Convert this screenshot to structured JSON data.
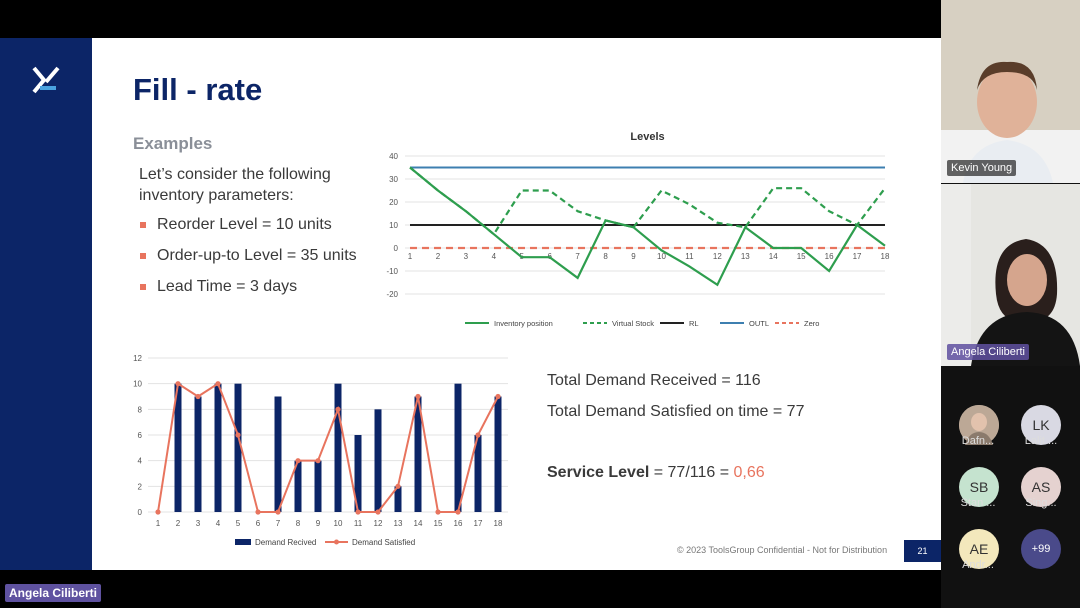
{
  "slide": {
    "title": "Fill - rate",
    "subtitle": "Examples",
    "intro": "Let’s consider the following inventory parameters:",
    "bullets": [
      "Reorder Level = 10 units",
      "Order-up-to Level = 35 units",
      "Lead Time = 3 days"
    ],
    "total_received": "Total Demand Received = 116",
    "total_satisfied": "Total Demand Satisfied on time = 77",
    "service_label": "Service Level",
    "service_formula": " = 77/116 = ",
    "service_value": "0,66",
    "footer": "© 2023 ToolsGroup Confidential - Not for Distribution",
    "page_number": "21",
    "colors": {
      "navy": "#0c2567",
      "accent": "#e8745e",
      "green": "#2e9e4e",
      "blue": "#3d7fb0"
    }
  },
  "chart_data": [
    {
      "type": "line",
      "title": "Levels",
      "x": [
        1,
        2,
        3,
        4,
        5,
        6,
        7,
        8,
        9,
        10,
        11,
        12,
        13,
        14,
        15,
        16,
        17,
        18
      ],
      "ylim": [
        -20,
        40
      ],
      "yticks": [
        -20,
        -10,
        0,
        10,
        20,
        30,
        40
      ],
      "series": [
        {
          "name": "Inventory position",
          "style": "solid",
          "color": "#2e9e4e",
          "values": [
            35,
            25,
            16,
            6,
            -4,
            -4,
            -13,
            12,
            9,
            -1,
            -8,
            -16,
            9,
            0,
            0,
            -10,
            10,
            1
          ]
        },
        {
          "name": "Virtual Stock",
          "style": "dashed",
          "color": "#2e9e4e",
          "values": [
            35,
            25,
            16,
            6,
            25,
            25,
            16,
            12,
            9,
            25,
            19,
            11,
            9,
            26,
            26,
            16,
            10,
            26
          ]
        },
        {
          "name": "RL",
          "style": "solid",
          "color": "#222222",
          "values": [
            10,
            10,
            10,
            10,
            10,
            10,
            10,
            10,
            10,
            10,
            10,
            10,
            10,
            10,
            10,
            10,
            10,
            10
          ]
        },
        {
          "name": "OUTL",
          "style": "solid",
          "color": "#3d7fb0",
          "values": [
            35,
            35,
            35,
            35,
            35,
            35,
            35,
            35,
            35,
            35,
            35,
            35,
            35,
            35,
            35,
            35,
            35,
            35
          ]
        },
        {
          "name": "Zero",
          "style": "dashed",
          "color": "#e8745e",
          "values": [
            0,
            0,
            0,
            0,
            0,
            0,
            0,
            0,
            0,
            0,
            0,
            0,
            0,
            0,
            0,
            0,
            0,
            0
          ]
        }
      ],
      "legend": "bottom"
    },
    {
      "type": "bar",
      "title": "",
      "categories": [
        "1",
        "2",
        "3",
        "4",
        "5",
        "6",
        "7",
        "8",
        "9",
        "10",
        "11",
        "12",
        "13",
        "14",
        "15",
        "16",
        "17",
        "18"
      ],
      "ylim": [
        0,
        12
      ],
      "yticks": [
        0,
        2,
        4,
        6,
        8,
        10,
        12
      ],
      "series": [
        {
          "name": "Demand Recived",
          "type": "bar",
          "color": "#0c2567",
          "values": [
            0,
            10,
            9,
            10,
            10,
            0,
            9,
            4,
            4,
            10,
            6,
            8,
            2,
            9,
            0,
            10,
            6,
            9
          ]
        },
        {
          "name": "Demand Satisfied",
          "type": "line",
          "color": "#e8745e",
          "values": [
            0,
            10,
            9,
            10,
            6,
            0,
            0,
            4,
            4,
            8,
            0,
            0,
            2,
            9,
            0,
            0,
            6,
            9
          ]
        }
      ],
      "legend": "bottom"
    }
  ],
  "meeting": {
    "participants": [
      {
        "name": "Kevin Young"
      },
      {
        "name": "Angela Ciliberti"
      }
    ],
    "avatars": [
      {
        "initials": "",
        "label": "Dafn..."
      },
      {
        "initials": "LK",
        "label": "Lalit ..."
      },
      {
        "initials": "SB",
        "label": "Stan ..."
      },
      {
        "initials": "AS",
        "label": "Sing..."
      },
      {
        "initials": "AE",
        "label": "Andr..."
      },
      {
        "initials": "+99",
        "label": ""
      }
    ],
    "active_speaker": "Angela Ciliberti"
  }
}
